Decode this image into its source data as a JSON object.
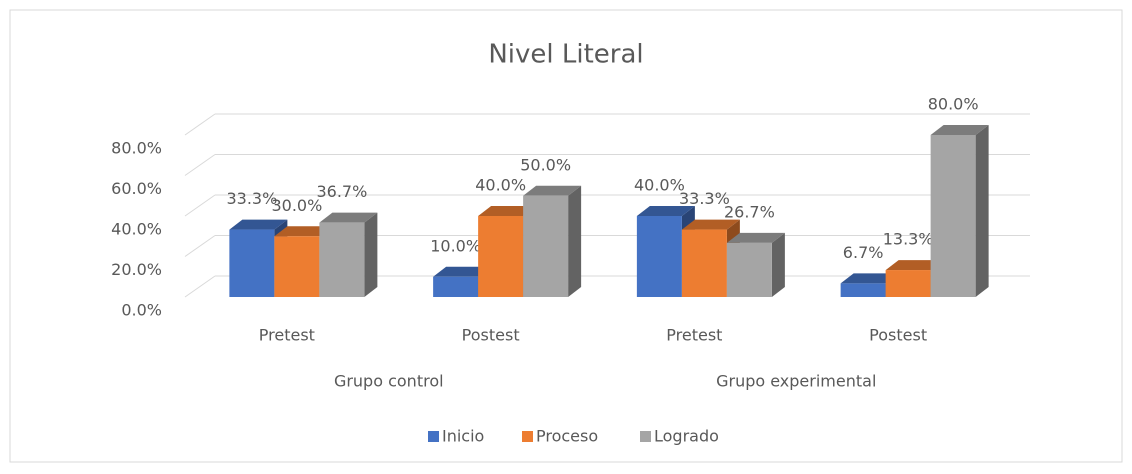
{
  "chart_data": {
    "type": "bar3d",
    "title": "Nivel Literal",
    "categories": [
      "Pretest",
      "Postest",
      "Pretest",
      "Postest"
    ],
    "groups": [
      "Grupo control",
      "Grupo experimental"
    ],
    "series": [
      {
        "name": "Inicio",
        "color": "#4472c4",
        "values": [
          33.3,
          10.0,
          40.0,
          6.7
        ],
        "value_labels": [
          "33.3%",
          "10.0%",
          "40.0%",
          "6.7%"
        ]
      },
      {
        "name": "Proceso",
        "color": "#ed7d31",
        "values": [
          30.0,
          40.0,
          33.3,
          13.3
        ],
        "value_labels": [
          "30.0%",
          "40.0%",
          "33.3%",
          "13.3%"
        ]
      },
      {
        "name": "Logrado",
        "color": "#a5a5a5",
        "values": [
          36.7,
          50.0,
          26.7,
          80.0
        ],
        "value_labels": [
          "36.7%",
          "50.0%",
          "26.7%",
          "80.0%"
        ]
      }
    ],
    "ylim": [
      0,
      80
    ],
    "yticks": [
      {
        "value": 0,
        "label": "0.0%"
      },
      {
        "value": 20,
        "label": "20.0%"
      },
      {
        "value": 40,
        "label": "40.0%"
      },
      {
        "value": 60,
        "label": "60.0%"
      },
      {
        "value": 80,
        "label": "80.0%"
      }
    ],
    "grid": true,
    "legend": "bottom"
  }
}
